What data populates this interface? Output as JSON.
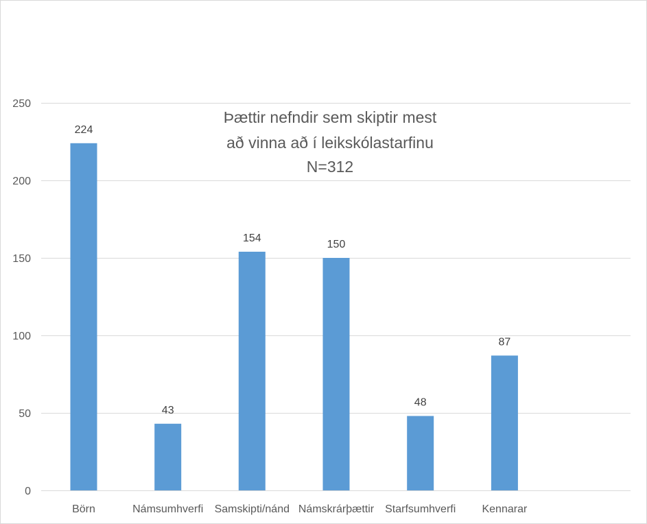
{
  "chart_data": {
    "type": "bar",
    "title_lines": [
      "Þættir nefndir sem skiptir mest",
      "að vinna að í leikskólastarfinu",
      "N=312"
    ],
    "categories": [
      "Börn",
      "Námsumhverfi",
      "Samskipti/nánd",
      "Námskrárþættir",
      "Starfsumhverfi",
      "Kennarar"
    ],
    "values": [
      224,
      43,
      154,
      150,
      48,
      87
    ],
    "data_labels": [
      "224",
      "43",
      "154",
      "150",
      "48",
      "87"
    ],
    "ylim": [
      0,
      250
    ],
    "y_ticks": [
      0,
      50,
      100,
      150,
      200,
      250
    ],
    "y_tick_labels": [
      "0",
      "50",
      "100",
      "150",
      "200",
      "250"
    ],
    "xlabel": "",
    "ylabel": "",
    "grid": true,
    "legend": "none",
    "bar_color": "#5b9bd5"
  }
}
